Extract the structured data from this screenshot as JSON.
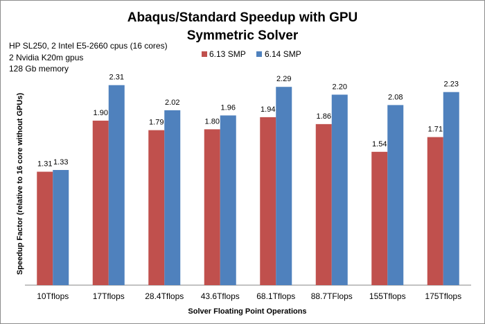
{
  "chart_data": {
    "type": "bar",
    "title": "Abaqus/Standard Speedup with GPU",
    "subtitle": "Symmetric Solver",
    "annotations": [
      "HP SL250, 2 Intel E5-2660 cpus (16 cores)",
      "2 Nvidia K20m gpus",
      "128 Gb memory"
    ],
    "xlabel": "Solver Floating Point Operations",
    "ylabel": "Speedup Factor (relative to 16 core without GPUs)",
    "categories": [
      "10Tflops",
      "17Tflops",
      "28.4Tflops",
      "43.6Tflops",
      "68.1Tflops",
      "88.7TFlops",
      "155Tflops",
      "175Tflops"
    ],
    "series": [
      {
        "name": "6.13 SMP",
        "color": "#c0504d",
        "values": [
          1.31,
          1.9,
          1.79,
          1.8,
          1.94,
          1.86,
          1.54,
          1.71
        ],
        "labels": [
          "1.31",
          "1.90",
          "1.79",
          "1.80",
          "1.94",
          "1.86",
          "1.54",
          "1.71"
        ]
      },
      {
        "name": "6.14 SMP",
        "color": "#4f81bd",
        "values": [
          1.33,
          2.31,
          2.02,
          1.96,
          2.29,
          2.2,
          2.08,
          2.23
        ],
        "labels": [
          "1.33",
          "2.31",
          "2.02",
          "1.96",
          "2.29",
          "2.20",
          "2.08",
          "2.23"
        ]
      }
    ],
    "ylim": [
      0,
      2.5
    ],
    "y_axis_visible": false,
    "grid": false,
    "legend_position": "top-center"
  }
}
